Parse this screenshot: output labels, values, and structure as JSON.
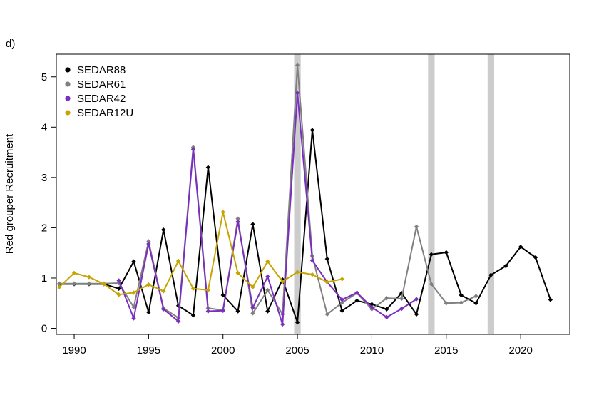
{
  "panel_label": "d)",
  "chart_data": {
    "type": "line",
    "title": "",
    "xlabel": "",
    "ylabel": "Red grouper Recruitment",
    "xlim": [
      1988.8,
      2023.3
    ],
    "ylim": [
      -0.12,
      5.45
    ],
    "xticks": [
      1990,
      1995,
      2000,
      2005,
      2010,
      2015,
      2020
    ],
    "yticks": [
      0,
      1,
      2,
      3,
      4,
      5
    ],
    "grid": false,
    "legend_position": "top-left",
    "shaded_years": [
      2005,
      2014,
      2018
    ],
    "shade_color": "#cccccc",
    "series": [
      {
        "name": "SEDAR88",
        "color": "#000000",
        "x": [
          1989,
          1990,
          1991,
          1992,
          1993,
          1994,
          1995,
          1996,
          1997,
          1998,
          1999,
          2000,
          2001,
          2002,
          2003,
          2004,
          2005,
          2006,
          2007,
          2008,
          2009,
          2010,
          2011,
          2012,
          2013,
          2014,
          2015,
          2016,
          2017,
          2018,
          2019,
          2020,
          2021,
          2022
        ],
        "y": [
          0.88,
          0.88,
          0.88,
          0.88,
          0.79,
          1.33,
          0.32,
          1.96,
          0.45,
          0.26,
          3.2,
          0.66,
          0.34,
          2.07,
          0.34,
          0.97,
          0.12,
          3.94,
          1.38,
          0.35,
          0.55,
          0.48,
          0.38,
          0.7,
          0.28,
          1.47,
          1.51,
          0.66,
          0.5,
          1.06,
          1.24,
          1.62,
          1.41,
          0.57
        ]
      },
      {
        "name": "SEDAR61",
        "color": "#808080",
        "x": [
          1989,
          1990,
          1991,
          1992,
          1993,
          1994,
          1995,
          1996,
          1997,
          1998,
          1999,
          2000,
          2001,
          2002,
          2003,
          2004,
          2005,
          2006,
          2007,
          2008,
          2009,
          2010,
          2011,
          2012,
          2013,
          2014,
          2015,
          2016,
          2017
        ],
        "y": [
          0.89,
          0.89,
          0.89,
          0.89,
          0.9,
          0.42,
          1.73,
          0.4,
          0.21,
          3.6,
          0.4,
          0.36,
          2.18,
          0.3,
          0.76,
          0.28,
          5.23,
          1.44,
          0.28,
          0.51,
          0.7,
          0.38,
          0.6,
          0.59,
          2.02,
          0.88,
          0.5,
          0.51,
          0.64
        ]
      },
      {
        "name": "SEDAR42",
        "color": "#7b2fbe",
        "x": [
          1993,
          1994,
          1995,
          1996,
          1997,
          1998,
          1999,
          2000,
          2001,
          2002,
          2003,
          2004,
          2005,
          2006,
          2007,
          2008,
          2009,
          2010,
          2011,
          2012,
          2013
        ],
        "y": [
          0.95,
          0.2,
          1.68,
          0.38,
          0.14,
          3.56,
          0.34,
          0.35,
          2.12,
          0.41,
          1.03,
          0.08,
          4.68,
          1.35,
          0.92,
          0.57,
          0.71,
          0.42,
          0.22,
          0.39,
          0.58
        ]
      },
      {
        "name": "SEDAR12U",
        "color": "#c8a400",
        "x": [
          1989,
          1990,
          1991,
          1992,
          1993,
          1994,
          1995,
          1996,
          1997,
          1998,
          1999,
          2000,
          2001,
          2002,
          2003,
          2004,
          2005,
          2006,
          2007,
          2008
        ],
        "y": [
          0.82,
          1.1,
          1.02,
          0.88,
          0.67,
          0.71,
          0.87,
          0.74,
          1.34,
          0.79,
          0.76,
          2.31,
          1.1,
          0.82,
          1.33,
          0.93,
          1.12,
          1.07,
          0.92,
          0.98
        ]
      }
    ]
  }
}
